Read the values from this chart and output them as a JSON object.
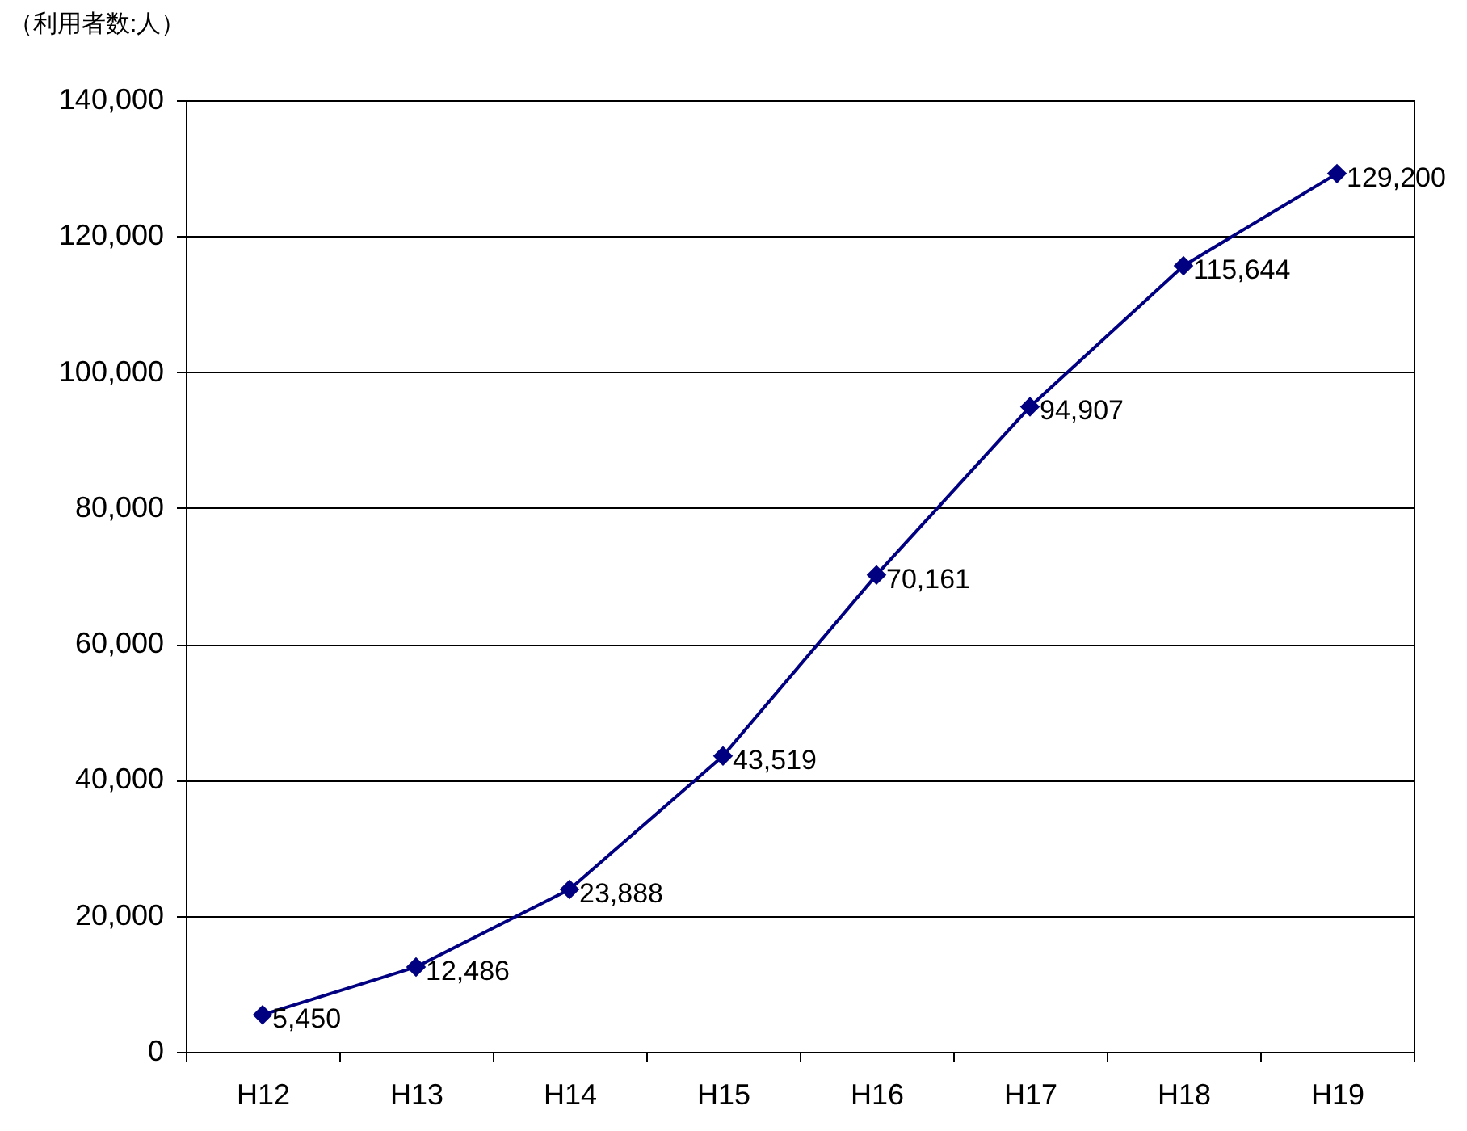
{
  "chart_data": {
    "type": "line",
    "ylabel": "（利用者数:人）",
    "categories": [
      "H12",
      "H13",
      "H14",
      "H15",
      "H16",
      "H17",
      "H18",
      "H19"
    ],
    "values": [
      5450,
      12486,
      23888,
      43519,
      70161,
      94907,
      115644,
      129200
    ],
    "value_labels": [
      "5,450",
      "12,486",
      "23,888",
      "43,519",
      "70,161",
      "94,907",
      "115,644",
      "129,200"
    ],
    "color": "#000080",
    "marker": "diamond",
    "grid": "y",
    "ylim": [
      0,
      140000
    ],
    "yticks": [
      {
        "value": 0,
        "label": "0"
      },
      {
        "value": 20000,
        "label": "20,000"
      },
      {
        "value": 40000,
        "label": "40,000"
      },
      {
        "value": 60000,
        "label": "60,000"
      },
      {
        "value": 80000,
        "label": "80,000"
      },
      {
        "value": 100000,
        "label": "100,000"
      },
      {
        "value": 120000,
        "label": "120,000"
      },
      {
        "value": 140000,
        "label": "140,000"
      }
    ]
  }
}
